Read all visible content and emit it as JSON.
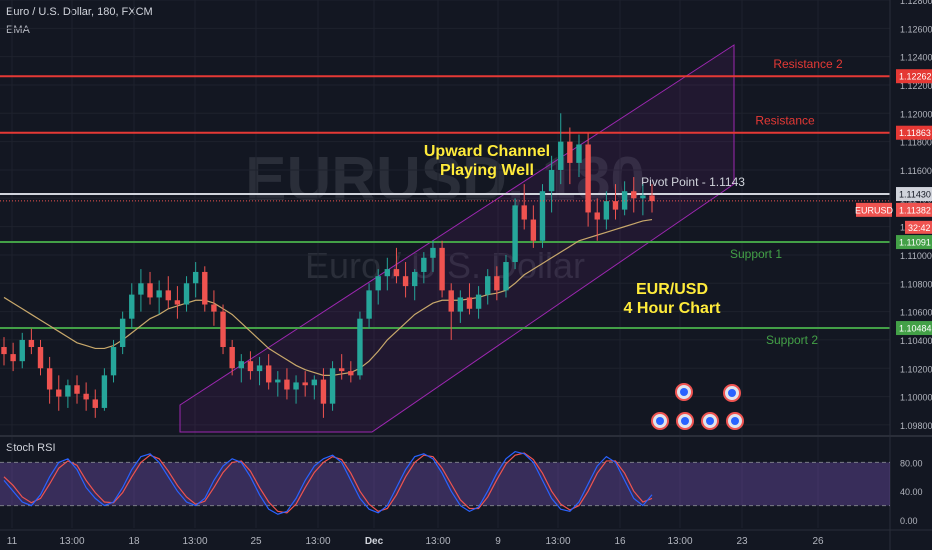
{
  "header": {
    "symbol_title": "Euro / U.S. Dollar, 180, FXCM",
    "indicator": "EMA"
  },
  "watermark": {
    "symbol": "EURUSD, 180",
    "description": "Euro / U.S. Dollar"
  },
  "colors": {
    "background": "#131722",
    "up_candle": "#26a69a",
    "down_candle": "#ef5350",
    "resistance": "#e53935",
    "support": "#43a047",
    "pivot": "#d1d4dc",
    "channel": "#9c27b0",
    "ema": "#c8a86b",
    "stoch_k": "#2962ff",
    "stoch_d": "#ef5350",
    "annotation_text": "#ffeb3b"
  },
  "chart_data": {
    "type": "candlestick",
    "ylim": [
      1.0975,
      1.128
    ],
    "price_ticks": [
      "1.12800",
      "1.12600",
      "1.12400",
      "1.12200",
      "1.12000",
      "1.11800",
      "1.11600",
      "1.11400",
      "1.11200",
      "1.11000",
      "1.10800",
      "1.10600",
      "1.10400",
      "1.10200",
      "1.10000",
      "1.09800"
    ],
    "x_ticks": [
      "11",
      "13:00",
      "18",
      "13:00",
      "25",
      "13:00",
      "Dec",
      "13:00",
      "9",
      "13:00",
      "16",
      "13:00",
      "23",
      "26"
    ],
    "levels": [
      {
        "label": "Resistance 2",
        "value": 1.12262,
        "badge": "1.12262",
        "kind": "resistance"
      },
      {
        "label": "Resistance",
        "value": 1.11863,
        "badge": "1.11863",
        "kind": "resistance"
      },
      {
        "label": "Pivot Point - 1.1143",
        "value": 1.1143,
        "badge": "1.11430",
        "kind": "pivot"
      },
      {
        "label": "Support 1",
        "value": 1.11091,
        "badge": "1.11091",
        "kind": "support"
      },
      {
        "label": "Support 2",
        "value": 1.10484,
        "badge": "1.10484",
        "kind": "support"
      }
    ],
    "last_price": {
      "symbol": "EURUSD",
      "value": "1.11382",
      "countdown": "32:42"
    },
    "annotations": [
      {
        "lines": [
          "Upward Channel",
          "Playing Well"
        ]
      },
      {
        "lines": [
          "EUR/USD",
          "4 Hour Chart"
        ]
      }
    ],
    "candles": [
      [
        1.1035,
        1.1042,
        1.1022,
        1.103
      ],
      [
        1.103,
        1.1038,
        1.1018,
        1.1025
      ],
      [
        1.1025,
        1.1045,
        1.102,
        1.104
      ],
      [
        1.104,
        1.1048,
        1.103,
        1.1035
      ],
      [
        1.1035,
        1.104,
        1.1015,
        1.102
      ],
      [
        1.102,
        1.1028,
        1.0995,
        1.1005
      ],
      [
        1.1005,
        1.1015,
        1.099,
        1.1
      ],
      [
        1.1,
        1.1012,
        1.0992,
        1.1008
      ],
      [
        1.1008,
        1.1015,
        1.0995,
        1.1002
      ],
      [
        1.1002,
        1.101,
        1.099,
        1.0998
      ],
      [
        1.0998,
        1.1005,
        1.0985,
        1.0992
      ],
      [
        1.0992,
        1.102,
        1.099,
        1.1015
      ],
      [
        1.1015,
        1.104,
        1.101,
        1.1035
      ],
      [
        1.1035,
        1.106,
        1.103,
        1.1055
      ],
      [
        1.1055,
        1.108,
        1.1048,
        1.1072
      ],
      [
        1.1072,
        1.109,
        1.106,
        1.108
      ],
      [
        1.108,
        1.1088,
        1.1065,
        1.107
      ],
      [
        1.107,
        1.1082,
        1.1058,
        1.1075
      ],
      [
        1.1075,
        1.1085,
        1.1062,
        1.1068
      ],
      [
        1.1068,
        1.1078,
        1.1055,
        1.1065
      ],
      [
        1.1065,
        1.1085,
        1.106,
        1.108
      ],
      [
        1.108,
        1.1095,
        1.107,
        1.1088
      ],
      [
        1.1088,
        1.1092,
        1.106,
        1.1065
      ],
      [
        1.1065,
        1.1075,
        1.105,
        1.106
      ],
      [
        1.106,
        1.1065,
        1.103,
        1.1035
      ],
      [
        1.1035,
        1.104,
        1.1015,
        1.102
      ],
      [
        1.102,
        1.103,
        1.101,
        1.1025
      ],
      [
        1.1025,
        1.1032,
        1.1012,
        1.1018
      ],
      [
        1.1018,
        1.1028,
        1.1008,
        1.1022
      ],
      [
        1.1022,
        1.103,
        1.1005,
        1.101
      ],
      [
        1.101,
        1.1018,
        1.1,
        1.1012
      ],
      [
        1.1012,
        1.102,
        1.0998,
        1.1005
      ],
      [
        1.1005,
        1.1015,
        1.0995,
        1.101
      ],
      [
        1.101,
        1.1018,
        1.1,
        1.1008
      ],
      [
        1.1008,
        1.1015,
        1.0998,
        1.1012
      ],
      [
        1.1012,
        1.102,
        1.0985,
        1.0995
      ],
      [
        1.0995,
        1.1025,
        1.099,
        1.102
      ],
      [
        1.102,
        1.103,
        1.1012,
        1.1018
      ],
      [
        1.1018,
        1.1025,
        1.101,
        1.1015
      ],
      [
        1.1015,
        1.106,
        1.1012,
        1.1055
      ],
      [
        1.1055,
        1.108,
        1.1048,
        1.1075
      ],
      [
        1.1075,
        1.109,
        1.1065,
        1.1085
      ],
      [
        1.1085,
        1.1098,
        1.1075,
        1.109
      ],
      [
        1.109,
        1.1105,
        1.108,
        1.1085
      ],
      [
        1.1085,
        1.1095,
        1.107,
        1.1078
      ],
      [
        1.1078,
        1.109,
        1.1068,
        1.1088
      ],
      [
        1.1088,
        1.1102,
        1.108,
        1.1098
      ],
      [
        1.1098,
        1.111,
        1.1088,
        1.1105
      ],
      [
        1.1105,
        1.111,
        1.107,
        1.1075
      ],
      [
        1.1075,
        1.108,
        1.104,
        1.106
      ],
      [
        1.106,
        1.1075,
        1.1052,
        1.107
      ],
      [
        1.107,
        1.108,
        1.1058,
        1.1062
      ],
      [
        1.1062,
        1.1078,
        1.1055,
        1.1072
      ],
      [
        1.1072,
        1.109,
        1.1065,
        1.1085
      ],
      [
        1.1085,
        1.1092,
        1.1068,
        1.1075
      ],
      [
        1.1075,
        1.11,
        1.107,
        1.1095
      ],
      [
        1.1095,
        1.114,
        1.109,
        1.1135
      ],
      [
        1.1135,
        1.115,
        1.1118,
        1.1125
      ],
      [
        1.1125,
        1.1135,
        1.1105,
        1.111
      ],
      [
        1.111,
        1.115,
        1.1105,
        1.1145
      ],
      [
        1.1145,
        1.117,
        1.113,
        1.116
      ],
      [
        1.116,
        1.12,
        1.115,
        1.118
      ],
      [
        1.118,
        1.119,
        1.115,
        1.1165
      ],
      [
        1.1165,
        1.1185,
        1.1155,
        1.1178
      ],
      [
        1.1178,
        1.1186,
        1.112,
        1.113
      ],
      [
        1.113,
        1.114,
        1.111,
        1.1125
      ],
      [
        1.1125,
        1.1145,
        1.1118,
        1.1138
      ],
      [
        1.1138,
        1.115,
        1.1125,
        1.1132
      ],
      [
        1.1132,
        1.1152,
        1.1128,
        1.1145
      ],
      [
        1.1145,
        1.1155,
        1.113,
        1.114
      ],
      [
        1.114,
        1.115,
        1.1128,
        1.1142
      ],
      [
        1.1142,
        1.115,
        1.113,
        1.1138
      ]
    ],
    "ema": [
      1.107,
      1.1066,
      1.1062,
      1.1058,
      1.1054,
      1.105,
      1.1046,
      1.1042,
      1.1038,
      1.1036,
      1.1034,
      1.1034,
      1.1036,
      1.104,
      1.1045,
      1.105,
      1.1055,
      1.1058,
      1.1062,
      1.1064,
      1.1066,
      1.1068,
      1.1068,
      1.1066,
      1.1062,
      1.1058,
      1.1052,
      1.1046,
      1.104,
      1.1034,
      1.103,
      1.1026,
      1.1022,
      1.1019,
      1.1017,
      1.1015,
      1.1015,
      1.1016,
      1.1017,
      1.102,
      1.1025,
      1.1032,
      1.104,
      1.1046,
      1.1052,
      1.1058,
      1.1062,
      1.1066,
      1.1068,
      1.1068,
      1.1068,
      1.1069,
      1.107,
      1.1072,
      1.1073,
      1.1075,
      1.108,
      1.1086,
      1.109,
      1.1094,
      1.1098,
      1.1102,
      1.1106,
      1.111,
      1.1112,
      1.1114,
      1.1116,
      1.1118,
      1.112,
      1.1122,
      1.1124,
      1.1125
    ],
    "stoch_rsi": {
      "title": "Stoch RSI",
      "ylim": [
        0,
        100
      ],
      "ticks": [
        "80.00",
        "40.00",
        "0.00"
      ],
      "k": [
        55,
        40,
        25,
        20,
        35,
        60,
        80,
        85,
        70,
        45,
        30,
        20,
        25,
        45,
        70,
        88,
        92,
        80,
        60,
        40,
        25,
        20,
        30,
        55,
        75,
        85,
        80,
        60,
        35,
        15,
        8,
        12,
        30,
        55,
        75,
        85,
        90,
        80,
        55,
        30,
        15,
        10,
        20,
        45,
        70,
        88,
        92,
        85,
        65,
        40,
        20,
        12,
        18,
        40,
        65,
        85,
        95,
        92,
        80,
        55,
        30,
        15,
        12,
        25,
        50,
        75,
        88,
        80,
        55,
        30,
        20,
        35
      ],
      "d": [
        60,
        48,
        32,
        24,
        30,
        50,
        72,
        82,
        76,
        55,
        38,
        25,
        24,
        38,
        60,
        80,
        90,
        85,
        68,
        48,
        32,
        22,
        26,
        45,
        66,
        80,
        82,
        68,
        45,
        25,
        12,
        10,
        22,
        45,
        66,
        80,
        88,
        84,
        65,
        40,
        22,
        12,
        16,
        35,
        60,
        80,
        90,
        88,
        72,
        50,
        28,
        16,
        16,
        32,
        56,
        78,
        90,
        93,
        84,
        65,
        40,
        22,
        14,
        20,
        40,
        65,
        82,
        82,
        65,
        40,
        25,
        30
      ]
    }
  }
}
